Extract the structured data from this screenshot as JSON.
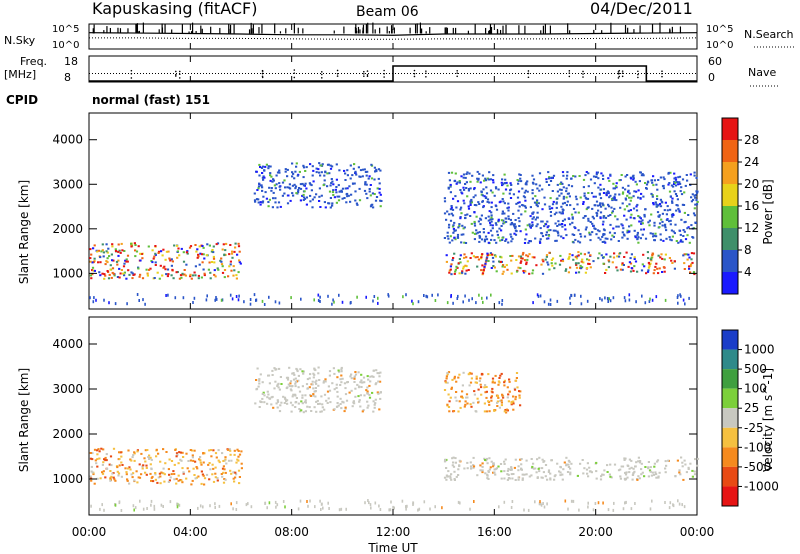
{
  "header": {
    "station": "Kapuskasing (fitACF)",
    "beam": "Beam 06",
    "date": "04/Dec/2011"
  },
  "summary_panel": {
    "nsky_label": "N.Sky",
    "nsky_top_tick": "10^5",
    "nsky_bottom_tick": "10^0",
    "nsearch_label": "N.Search",
    "nsearch_top_tick": "10^5",
    "nsearch_bottom_tick": "10^0",
    "freq_label_line1": "Freq.",
    "freq_label_line2": "[MHz]",
    "freq_ticks": [
      "18",
      "8"
    ],
    "nave_ticks": [
      "60",
      "0"
    ],
    "nave_label": "Nave",
    "cpid_label": "CPID",
    "cpid_value": "normal (fast) 151"
  },
  "power_panel": {
    "ylabel": "Slant Range [km]",
    "yticks": [
      "1000",
      "2000",
      "3000",
      "4000"
    ],
    "colorbar_label": "Power [dB]",
    "colorbar_ticks": [
      "4",
      "8",
      "12",
      "16",
      "20",
      "24",
      "28"
    ],
    "colors": [
      "#1a1aff",
      "#2a55c8",
      "#3f8f6a",
      "#5fbf3a",
      "#e8d21a",
      "#f5a01e",
      "#f06414",
      "#e61414"
    ]
  },
  "velocity_panel": {
    "ylabel": "Slant Range [km]",
    "yticks": [
      "1000",
      "2000",
      "3000",
      "4000"
    ],
    "colorbar_label": "Velocity [m s^-1]",
    "colorbar_ticks": [
      "1000",
      "500",
      "100",
      "25",
      "-25",
      "-100",
      "-500",
      "-1000"
    ],
    "colors": [
      "#1a3dc8",
      "#2f8a8a",
      "#3f9f3f",
      "#7ccf3a",
      "#c8c8c0",
      "#f5c040",
      "#f58a1e",
      "#e84a14",
      "#e61414"
    ]
  },
  "xaxis": {
    "label": "Time UT",
    "ticks": [
      "00:00",
      "04:00",
      "08:00",
      "12:00",
      "16:00",
      "20:00",
      "00:00"
    ]
  },
  "chart_data": [
    {
      "type": "line",
      "title": "N.Sky / N.Search",
      "xlabel": "Time UT",
      "x_range": [
        "00:00",
        "24:00"
      ],
      "y_scale": "log",
      "ylim": [
        1,
        100000
      ],
      "series": [
        {
          "name": "N.Sky",
          "x": [
            "00:00",
            "02:00",
            "04:00",
            "06:00",
            "08:00",
            "10:00",
            "12:00",
            "14:00",
            "16:00",
            "18:00",
            "20:00",
            "22:00",
            "24:00"
          ],
          "values": [
            3000,
            2500,
            2000,
            1500,
            1000,
            1000,
            800,
            1500,
            1500,
            1500,
            2000,
            2500,
            3000
          ]
        },
        {
          "name": "N.Search",
          "x": [
            "00:00",
            "02:00",
            "04:00",
            "06:00",
            "08:00",
            "10:00",
            "12:00",
            "14:00",
            "16:00",
            "18:00",
            "20:00",
            "22:00",
            "24:00"
          ],
          "values": [
            200,
            200,
            150,
            150,
            120,
            100,
            100,
            120,
            120,
            120,
            150,
            150,
            200
          ]
        }
      ]
    },
    {
      "type": "line",
      "title": "Freq / Nave",
      "xlabel": "Time UT",
      "x_range": [
        "00:00",
        "24:00"
      ],
      "series": [
        {
          "name": "Freq. [MHz]",
          "x": [
            "00:00",
            "12:00",
            "12:00",
            "22:00",
            "22:00",
            "24:00"
          ],
          "values": [
            8,
            8,
            18,
            18,
            8,
            8
          ]
        },
        {
          "name": "Nave",
          "x": [
            "00:00",
            "24:00"
          ],
          "values": [
            30,
            30
          ]
        }
      ],
      "ylim_left": [
        8,
        18
      ],
      "ylim_right": [
        0,
        60
      ]
    },
    {
      "type": "heatmap",
      "title": "Power [dB]",
      "xlabel": "Time UT",
      "ylabel": "Slant Range [km]",
      "x_range": [
        "00:00",
        "24:00"
      ],
      "ylim": [
        200,
        4600
      ],
      "color_range": [
        0,
        30
      ],
      "regions": [
        {
          "t_start": 0.0,
          "t_end": 6.0,
          "range_start": 900,
          "range_end": 1700,
          "level": 24
        },
        {
          "t_start": 6.5,
          "t_end": 11.5,
          "range_start": 2500,
          "range_end": 3500,
          "level": 4
        },
        {
          "t_start": 14.0,
          "t_end": 24.0,
          "range_start": 1000,
          "range_end": 1500,
          "level": 26
        },
        {
          "t_start": 14.0,
          "t_end": 24.0,
          "range_start": 1700,
          "range_end": 3300,
          "level": 8
        }
      ]
    },
    {
      "type": "heatmap",
      "title": "Velocity [m s^-1]",
      "xlabel": "Time UT",
      "ylabel": "Slant Range [km]",
      "x_range": [
        "00:00",
        "24:00"
      ],
      "ylim": [
        200,
        4600
      ],
      "regions": [
        {
          "t_start": 0.0,
          "t_end": 6.0,
          "range_start": 900,
          "range_end": 1700,
          "level": -200
        },
        {
          "t_start": 6.5,
          "t_end": 11.5,
          "range_start": 2500,
          "range_end": 3500,
          "level": 0
        },
        {
          "t_start": 14.0,
          "t_end": 24.0,
          "range_start": 1000,
          "range_end": 1500,
          "level": 0
        },
        {
          "t_start": 14.0,
          "t_end": 17.0,
          "range_start": 2500,
          "range_end": 3400,
          "level": -300
        }
      ]
    }
  ]
}
